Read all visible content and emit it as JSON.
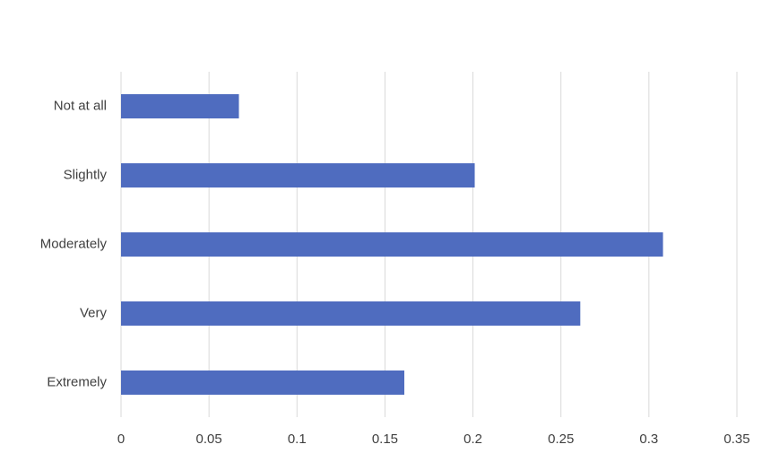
{
  "chart_data": {
    "type": "hbar",
    "categories": [
      "Not at all",
      "Slightly",
      "Moderately",
      "Very",
      "Extremely"
    ],
    "values": [
      0.067,
      0.201,
      0.308,
      0.261,
      0.161
    ],
    "color": "#4f6cbf",
    "xlim": [
      0,
      0.35
    ],
    "xticks": [
      0,
      0.05,
      0.1,
      0.15,
      0.2,
      0.25,
      0.3,
      0.35
    ],
    "grid": true
  }
}
